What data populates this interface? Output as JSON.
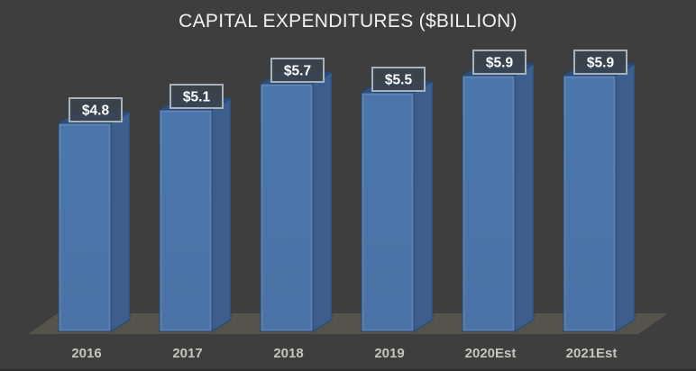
{
  "chart_data": {
    "type": "bar",
    "style": "3d-column",
    "title": "CAPITAL EXPENDITURES ($BILLION)",
    "categories": [
      "2016",
      "2017",
      "2018",
      "2019",
      "2020Est",
      "2021Est"
    ],
    "values": [
      4.8,
      5.1,
      5.7,
      5.5,
      5.9,
      5.9
    ],
    "data_labels": [
      "$4.8",
      "$5.1",
      "$5.7",
      "$5.5",
      "$5.9",
      "$5.9"
    ],
    "xlabel": "",
    "ylabel": "",
    "legend": "none",
    "gridlines": false,
    "value_axis_visible": false,
    "ylim": [
      0,
      6.5
    ]
  },
  "colors": {
    "background": "#3e3e3e",
    "title_text": "#f2f2f2",
    "floor": "#56534a",
    "bar_front": "#4c76ab",
    "bar_front_bottom": "#4a72a5",
    "bar_top": "#2f4f7c",
    "bar_side": "#3b5e8c",
    "bar_edge": "#26466f",
    "label_box_fill": "rgba(58,67,78,0.88)",
    "label_box_border": "#a9b2ba",
    "label_text": "#ffffff",
    "category_text": "#c8c4bb",
    "bottom_line": "#2a2a2a"
  }
}
